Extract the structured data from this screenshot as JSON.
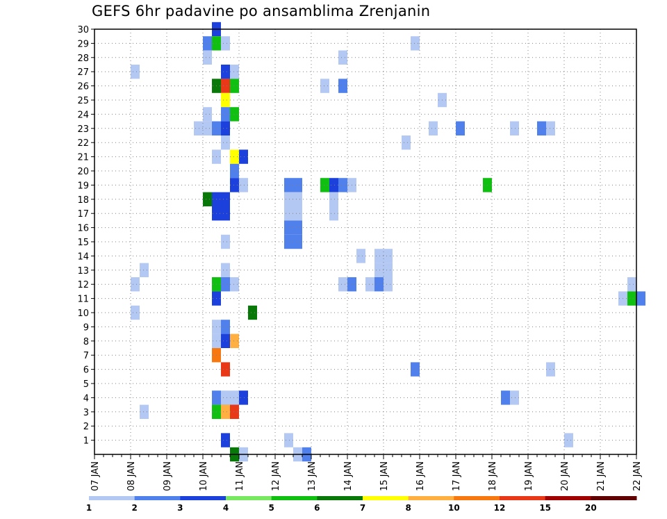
{
  "title": "GEFS 6hr padavine po ansamblima Zrenjanin",
  "chart_data": {
    "type": "heatmap",
    "title": "GEFS 6hr padavine po ansamblima Zrenjanin",
    "xlabel": "",
    "ylabel": "",
    "grid": true,
    "x_tick_labels": [
      "07 JAN",
      "08 JAN",
      "09 JAN",
      "10 JAN",
      "11 JAN",
      "12 JAN",
      "13 JAN",
      "14 JAN",
      "15 JAN",
      "16 JAN",
      "17 JAN",
      "18 JAN",
      "19 JAN",
      "20 JAN",
      "21 JAN",
      "22 JAN"
    ],
    "y_tick_labels": [
      "1",
      "2",
      "3",
      "4",
      "5",
      "6",
      "7",
      "8",
      "9",
      "10",
      "11",
      "12",
      "13",
      "14",
      "15",
      "16",
      "17",
      "18",
      "19",
      "20",
      "21",
      "22",
      "23",
      "24",
      "25",
      "26",
      "27",
      "28",
      "29",
      "30"
    ],
    "colorbar": {
      "labels": [
        "1",
        "2",
        "3",
        "4",
        "5",
        "6",
        "7",
        "8",
        "10",
        "12",
        "15",
        "20"
      ],
      "colors": [
        "#b4c8f4",
        "#5080ec",
        "#1c40dc",
        "#78e860",
        "#10c010",
        "#087808",
        "#ffff00",
        "#ffb040",
        "#f87810",
        "#e83818",
        "#a00000",
        "#600000"
      ]
    },
    "cells": [
      [
        3.25,
        30,
        3
      ],
      [
        3.0,
        29,
        2
      ],
      [
        3.25,
        29,
        5
      ],
      [
        3.5,
        29,
        1
      ],
      [
        8.75,
        29,
        1
      ],
      [
        3.0,
        28,
        1
      ],
      [
        6.75,
        28,
        1
      ],
      [
        1.0,
        27,
        1
      ],
      [
        3.5,
        27,
        3
      ],
      [
        3.75,
        27,
        1
      ],
      [
        3.25,
        26,
        6
      ],
      [
        3.5,
        26,
        10
      ],
      [
        3.75,
        26,
        5
      ],
      [
        6.25,
        26,
        1
      ],
      [
        6.75,
        26,
        2
      ],
      [
        3.5,
        25,
        7
      ],
      [
        9.5,
        25,
        1
      ],
      [
        3.0,
        24,
        1
      ],
      [
        3.5,
        24,
        2
      ],
      [
        3.75,
        24,
        5
      ],
      [
        2.75,
        23,
        1
      ],
      [
        3.0,
        23,
        1
      ],
      [
        3.25,
        23,
        2
      ],
      [
        3.5,
        23,
        3
      ],
      [
        9.25,
        23,
        1
      ],
      [
        10.0,
        23,
        2
      ],
      [
        11.5,
        23,
        1
      ],
      [
        12.25,
        23,
        2
      ],
      [
        12.5,
        23,
        1
      ],
      [
        3.5,
        22,
        1
      ],
      [
        8.5,
        22,
        1
      ],
      [
        3.25,
        21,
        1
      ],
      [
        3.75,
        21,
        7
      ],
      [
        4.0,
        21,
        3
      ],
      [
        3.75,
        20,
        2
      ],
      [
        3.75,
        19,
        3
      ],
      [
        4.0,
        19,
        1
      ],
      [
        5.25,
        19,
        2
      ],
      [
        5.5,
        19,
        2
      ],
      [
        6.25,
        19,
        5
      ],
      [
        6.5,
        19,
        3
      ],
      [
        6.75,
        19,
        2
      ],
      [
        7.0,
        19,
        1
      ],
      [
        10.75,
        19,
        5
      ],
      [
        3.0,
        18,
        6
      ],
      [
        3.25,
        18,
        3
      ],
      [
        3.5,
        18,
        3
      ],
      [
        5.25,
        18,
        1
      ],
      [
        5.5,
        18,
        1
      ],
      [
        6.5,
        18,
        1
      ],
      [
        3.25,
        17,
        3
      ],
      [
        3.5,
        17,
        3
      ],
      [
        5.25,
        17,
        1
      ],
      [
        5.5,
        17,
        1
      ],
      [
        6.5,
        17,
        1
      ],
      [
        5.25,
        16,
        2
      ],
      [
        5.5,
        16,
        2
      ],
      [
        3.5,
        15,
        1
      ],
      [
        5.25,
        15,
        2
      ],
      [
        5.5,
        15,
        2
      ],
      [
        7.25,
        14,
        1
      ],
      [
        7.75,
        14,
        1
      ],
      [
        8.0,
        14,
        1
      ],
      [
        1.25,
        13,
        1
      ],
      [
        3.5,
        13,
        1
      ],
      [
        7.75,
        13,
        1
      ],
      [
        8.0,
        13,
        1
      ],
      [
        1.0,
        12,
        1
      ],
      [
        3.25,
        12,
        5
      ],
      [
        3.5,
        12,
        2
      ],
      [
        3.75,
        12,
        1
      ],
      [
        6.75,
        12,
        1
      ],
      [
        7.0,
        12,
        2
      ],
      [
        7.5,
        12,
        1
      ],
      [
        7.75,
        12,
        2
      ],
      [
        8.0,
        12,
        1
      ],
      [
        14.75,
        12,
        1
      ],
      [
        3.25,
        11,
        3
      ],
      [
        14.5,
        11,
        1
      ],
      [
        14.75,
        11,
        5
      ],
      [
        15.0,
        11,
        2
      ],
      [
        1.0,
        10,
        1
      ],
      [
        4.25,
        10,
        6
      ],
      [
        3.25,
        9,
        1
      ],
      [
        3.5,
        9,
        2
      ],
      [
        3.25,
        8,
        1
      ],
      [
        3.5,
        8,
        3
      ],
      [
        3.75,
        8,
        8
      ],
      [
        3.25,
        7,
        9
      ],
      [
        3.5,
        6,
        10
      ],
      [
        8.75,
        6,
        2
      ],
      [
        12.5,
        6,
        1
      ],
      [
        3.25,
        4,
        2
      ],
      [
        3.5,
        4,
        1
      ],
      [
        3.75,
        4,
        1
      ],
      [
        4.0,
        4,
        3
      ],
      [
        11.25,
        4,
        2
      ],
      [
        11.5,
        4,
        1
      ],
      [
        1.25,
        3,
        1
      ],
      [
        3.25,
        3,
        5
      ],
      [
        3.5,
        3,
        5
      ],
      [
        3.75,
        3,
        3
      ],
      [
        3.5,
        3,
        8
      ],
      [
        3.75,
        3,
        10
      ],
      [
        3.5,
        1,
        3
      ],
      [
        5.25,
        1,
        1
      ],
      [
        13.0,
        1,
        1
      ],
      [
        3.75,
        0,
        6
      ],
      [
        4.0,
        0,
        1
      ],
      [
        5.5,
        0,
        1
      ],
      [
        5.75,
        0,
        2
      ]
    ]
  }
}
